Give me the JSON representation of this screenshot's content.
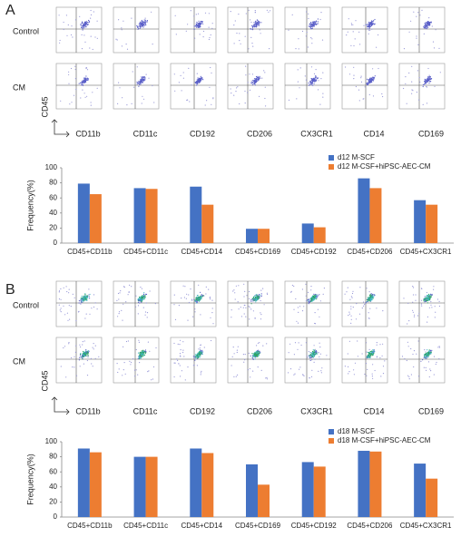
{
  "panels": [
    {
      "label": "A",
      "row_labels": [
        "Control",
        "CM"
      ],
      "y_axis_label": "CD45",
      "markers": [
        "CD11b",
        "CD11c",
        "CD192",
        "CD206",
        "CX3CR1",
        "CD14",
        "CD169"
      ]
    },
    {
      "label": "B",
      "row_labels": [
        "Control",
        "CM"
      ],
      "y_axis_label": "CD45",
      "markers": [
        "CD11b",
        "CD11c",
        "CD192",
        "CD206",
        "CX3CR1",
        "CD14",
        "CD169"
      ]
    }
  ],
  "chart_data": [
    {
      "type": "bar",
      "y_label": "Frequency(%)",
      "categories": [
        "CD45+CD11b",
        "CD45+CD11c",
        "CD45+CD14",
        "CD45+CD169",
        "CD45+CD192",
        "CD45+CD206",
        "CD45+CX3CR1"
      ],
      "series": [
        {
          "name": "d12 M-SCF",
          "color": "#4472c4",
          "values": [
            79,
            73,
            75,
            19,
            26,
            86,
            57
          ]
        },
        {
          "name": "d12 M-CSF+hiPSC-AEC-CM",
          "color": "#ed7d31",
          "values": [
            65,
            72,
            51,
            19,
            21,
            73,
            51
          ]
        }
      ],
      "ylim": [
        0,
        100
      ],
      "yticks": [
        0,
        20,
        40,
        60,
        80,
        100
      ],
      "grid": false
    },
    {
      "type": "bar",
      "y_label": "Frequency(%)",
      "categories": [
        "CD45+CD11b",
        "CD45+CD11c",
        "CD45+CD14",
        "CD45+CD169",
        "CD45+CD192",
        "CD45+CD206",
        "CD45+CX3CR1"
      ],
      "series": [
        {
          "name": "d18 M-SCF",
          "color": "#4472c4",
          "values": [
            91,
            80,
            91,
            70,
            73,
            88,
            71
          ]
        },
        {
          "name": "d18 M-CSF+hiPSC-AEC-CM",
          "color": "#ed7d31",
          "values": [
            86,
            80,
            85,
            43,
            67,
            87,
            51
          ]
        }
      ],
      "ylim": [
        0,
        100
      ],
      "yticks": [
        0,
        20,
        40,
        60,
        80,
        100
      ],
      "grid": false
    }
  ]
}
